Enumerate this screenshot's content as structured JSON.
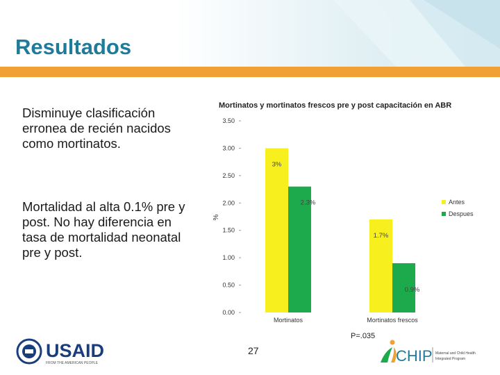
{
  "slide": {
    "title": "Resultados",
    "text1": "Disminuye clasificación erronea de recién nacidos como mortinatos.",
    "text2": "Mortalidad al alta 0.1% pre y post. No hay diferencia en tasa de mortalidad neonatal pre y post.",
    "p_value": "P=.035",
    "page_number": "27"
  },
  "logos": {
    "usaid_text": "USAID",
    "usaid_tagline": "FROM THE AMERICAN PEOPLE",
    "chip_text": "CHIP",
    "chip_tagline_1": "Maternal and Child Health",
    "chip_tagline_2": "Integrated Program"
  },
  "colors": {
    "title": "#1f7b99",
    "accent_bar": "#f0a034",
    "antes": "#f7ef1e",
    "despues": "#1daa4c"
  },
  "chart_data": {
    "type": "bar",
    "title": "Mortinatos y mortinatos frescos pre y post capacitación en ABR",
    "xlabel": "",
    "ylabel": "%",
    "ylim": [
      0,
      3.5
    ],
    "yticks": [
      "0.00",
      "0.50",
      "1.00",
      "1.50",
      "2.00",
      "2.50",
      "3.00",
      "3.50"
    ],
    "categories": [
      "Mortinatos",
      "Mortinatos frescos"
    ],
    "series": [
      {
        "name": "Antes",
        "values": [
          3.0,
          1.7
        ],
        "labels": [
          "3%",
          "1.7%"
        ],
        "color": "#f7ef1e"
      },
      {
        "name": "Despues",
        "values": [
          2.3,
          0.9
        ],
        "labels": [
          "2.3%",
          "0.9%"
        ],
        "color": "#1daa4c"
      }
    ],
    "grid": false,
    "legend": "right"
  }
}
